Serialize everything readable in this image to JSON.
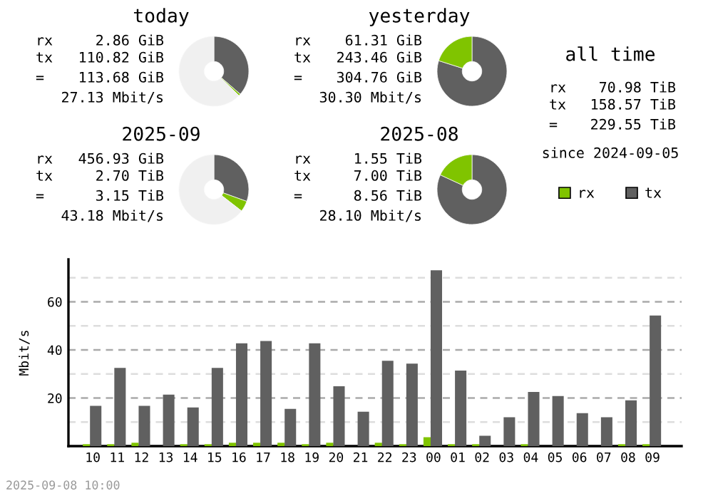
{
  "chart_data": [
    {
      "type": "donut",
      "title": "today",
      "categories": [
        null,
        null,
        null
      ],
      "values": [
        36.4,
        0.9,
        62.7
      ],
      "colors": [
        "#606060",
        "#80c400",
        "#f0f0f0"
      ],
      "annotations": [
        "rx 2.86 GiB",
        "tx 110.82 GiB",
        "= 113.68 GiB",
        "27.13 Mbit/s"
      ]
    },
    {
      "type": "donut",
      "title": "yesterday",
      "categories": [
        null,
        null
      ],
      "values": [
        79.9,
        20.1
      ],
      "colors": [
        "#606060",
        "#80c400"
      ],
      "annotations": [
        "rx 61.31 GiB",
        "tx 243.46 GiB",
        "= 304.76 GiB",
        "30.30 Mbit/s"
      ]
    },
    {
      "type": "donut",
      "title": "2025-09",
      "categories": [
        null,
        null,
        null
      ],
      "values": [
        30.5,
        5.0,
        64.5
      ],
      "colors": [
        "#606060",
        "#80c400",
        "#f0f0f0"
      ],
      "annotations": [
        "rx 456.93 GiB",
        "tx 2.70 TiB",
        "= 3.15 TiB",
        "43.18 Mbit/s"
      ]
    },
    {
      "type": "donut",
      "title": "2025-08",
      "categories": [
        null,
        null
      ],
      "values": [
        81.9,
        18.1
      ],
      "colors": [
        "#606060",
        "#80c400"
      ],
      "annotations": [
        "rx 1.55 TiB",
        "tx 7.00 TiB",
        "= 8.56 TiB",
        "28.10 Mbit/s"
      ]
    },
    {
      "type": "other",
      "title": "all time",
      "annotations": [
        "rx 70.98 TiB",
        "tx 158.57 TiB",
        "= 229.55 TiB",
        "since 2024-09-05"
      ]
    },
    {
      "type": "bar",
      "ylabel": "Mbit/s",
      "categories": [
        "10",
        "11",
        "12",
        "13",
        "14",
        "15",
        "16",
        "17",
        "18",
        "19",
        "20",
        "21",
        "22",
        "23",
        "00",
        "01",
        "02",
        "03",
        "04",
        "05",
        "06",
        "07",
        "08",
        "09"
      ],
      "series": [
        {
          "name": "rx",
          "color": "#80c400",
          "values": [
            0.8,
            0.8,
            1.4,
            0,
            0.8,
            0.8,
            1.4,
            1.4,
            1.4,
            0.8,
            1.4,
            0,
            1.4,
            0.8,
            3.7,
            0.8,
            0.8,
            0,
            0.8,
            0,
            0,
            0,
            0.8,
            0.8
          ]
        },
        {
          "name": "tx",
          "color": "#606060",
          "values": [
            16.7,
            32.5,
            16.7,
            21.4,
            16.1,
            32.5,
            42.7,
            43.7,
            15.5,
            42.7,
            24.9,
            14.3,
            35.5,
            34.3,
            73.1,
            31.4,
            4.3,
            12.0,
            22.5,
            20.8,
            13.7,
            12.0,
            19.0,
            54.3
          ]
        }
      ],
      "ylim": [
        0,
        77.6
      ],
      "yticks": [
        {
          "value": 0,
          "label": null
        },
        {
          "value": 10,
          "label": null
        },
        20,
        {
          "value": 30,
          "label": null
        },
        40,
        {
          "value": 50,
          "label": null
        },
        60,
        {
          "value": 70,
          "label": null
        }
      ],
      "grid": "y",
      "legend": "top right",
      "annotations": [
        "2025-09-08 10:00"
      ]
    }
  ]
}
